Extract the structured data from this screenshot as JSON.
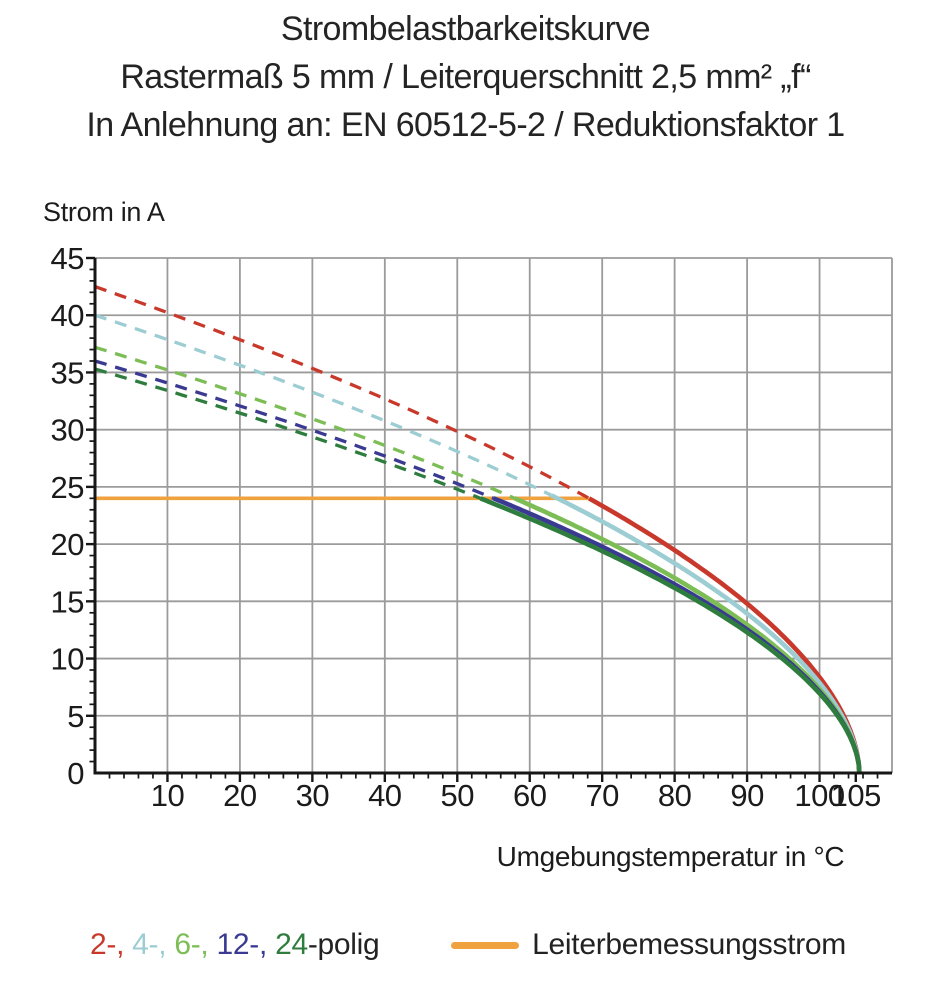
{
  "title": {
    "line1": "Strombelastbarkeitskurve",
    "line2": "Rastermaß 5 mm / Leiterquerschnitt 2,5 mm² „f“",
    "line3": "In Anlehnung an: EN 60512-5-2 / Reduktionsfaktor 1"
  },
  "chart_data": {
    "type": "line",
    "title": "Strombelastbarkeitskurve",
    "xlabel": "Umgebungstemperatur in °C",
    "ylabel": "Strom in A",
    "xlim": [
      0,
      110
    ],
    "ylim": [
      0,
      45
    ],
    "x_tick_labels": [
      10,
      20,
      30,
      40,
      50,
      60,
      70,
      80,
      90,
      100,
      105
    ],
    "x_gridlines_every": 10,
    "x_minor_tick_step": 2,
    "y_tick_labels": [
      0,
      5,
      10,
      15,
      20,
      25,
      30,
      35,
      40,
      45
    ],
    "y_gridlines_every": 5,
    "y_minor_tick_step": 1,
    "grid": "major gridlines only, gray",
    "legend_position": "bottom",
    "rated_current": {
      "label": "Leiterbemessungsstrom",
      "value_a": 24,
      "t_start": 0,
      "t_end": 68.2,
      "color": "#F0A23F"
    },
    "model": {
      "formula": "I(T) = I0 · (1 − T/105.5)^0.55 — dashed above rated 24 A, solid below",
      "t_end": 105.5,
      "exponent": 0.55
    },
    "series": [
      {
        "name": "2-polig",
        "legend_label": "2-,",
        "color": "#C8392C",
        "i0": 42.5,
        "solid_from": 68.2,
        "points": [
          [
            0,
            42.5
          ],
          [
            10,
            40.2
          ],
          [
            20,
            37.8
          ],
          [
            30,
            35.3
          ],
          [
            40,
            32.6
          ],
          [
            50,
            29.8
          ],
          [
            60,
            26.7
          ],
          [
            70,
            23.2
          ],
          [
            80,
            19.3
          ],
          [
            90,
            14.8
          ],
          [
            95,
            11.9
          ],
          [
            100,
            8.4
          ],
          [
            103,
            5.4
          ],
          [
            105,
            2.3
          ],
          [
            105.5,
            0
          ]
        ]
      },
      {
        "name": "4-polig",
        "legend_label": "4-,",
        "color": "#9CCDD3",
        "i0": 40.0,
        "solid_from": 63.0,
        "points": [
          [
            0,
            40.0
          ],
          [
            10,
            37.8
          ],
          [
            20,
            35.6
          ],
          [
            30,
            33.2
          ],
          [
            40,
            30.7
          ],
          [
            50,
            28.0
          ],
          [
            60,
            25.1
          ],
          [
            70,
            21.8
          ],
          [
            80,
            18.2
          ],
          [
            90,
            13.9
          ],
          [
            95,
            11.2
          ],
          [
            100,
            7.9
          ],
          [
            103,
            5.1
          ],
          [
            105,
            2.1
          ],
          [
            105.5,
            0
          ]
        ]
      },
      {
        "name": "6-polig",
        "legend_label": "6-,",
        "color": "#7CBD55",
        "i0": 37.2,
        "solid_from": 57.9,
        "points": [
          [
            0,
            37.2
          ],
          [
            10,
            35.2
          ],
          [
            20,
            33.1
          ],
          [
            30,
            30.9
          ],
          [
            40,
            28.6
          ],
          [
            50,
            26.1
          ],
          [
            60,
            23.4
          ],
          [
            70,
            20.3
          ],
          [
            80,
            16.9
          ],
          [
            90,
            12.9
          ],
          [
            95,
            10.4
          ],
          [
            100,
            7.3
          ],
          [
            103,
            4.8
          ],
          [
            105,
            2.0
          ],
          [
            105.5,
            0
          ]
        ]
      },
      {
        "name": "12-polig",
        "legend_label": "12-,",
        "color": "#3A3A92",
        "i0": 36.0,
        "solid_from": 55.0,
        "points": [
          [
            0,
            36.0
          ],
          [
            10,
            34.0
          ],
          [
            20,
            32.0
          ],
          [
            30,
            29.9
          ],
          [
            40,
            27.6
          ],
          [
            50,
            25.2
          ],
          [
            60,
            22.6
          ],
          [
            70,
            19.7
          ],
          [
            80,
            16.3
          ],
          [
            90,
            12.5
          ],
          [
            95,
            10.1
          ],
          [
            100,
            7.1
          ],
          [
            103,
            4.6
          ],
          [
            105,
            1.9
          ],
          [
            105.5,
            0
          ]
        ]
      },
      {
        "name": "24-polig",
        "legend_label": "24",
        "color": "#2E7D3E",
        "i0": 35.3,
        "solid_from": 53.2,
        "points": [
          [
            0,
            35.3
          ],
          [
            10,
            33.4
          ],
          [
            20,
            31.4
          ],
          [
            30,
            29.3
          ],
          [
            40,
            27.1
          ],
          [
            50,
            24.7
          ],
          [
            60,
            22.2
          ],
          [
            70,
            19.3
          ],
          [
            80,
            16.0
          ],
          [
            90,
            12.3
          ],
          [
            95,
            9.9
          ],
          [
            100,
            7.0
          ],
          [
            103,
            4.5
          ],
          [
            105,
            1.9
          ],
          [
            105.5,
            0
          ]
        ]
      }
    ]
  },
  "legend": {
    "suffix": "-polig",
    "rated_label": "Leiterbemessungsstrom"
  },
  "colors": {
    "background": "#FFFFFF",
    "text": "#1C1C1C",
    "grid": "#9B9B9B",
    "axis": "#161616",
    "orange": "#F0A23F"
  }
}
